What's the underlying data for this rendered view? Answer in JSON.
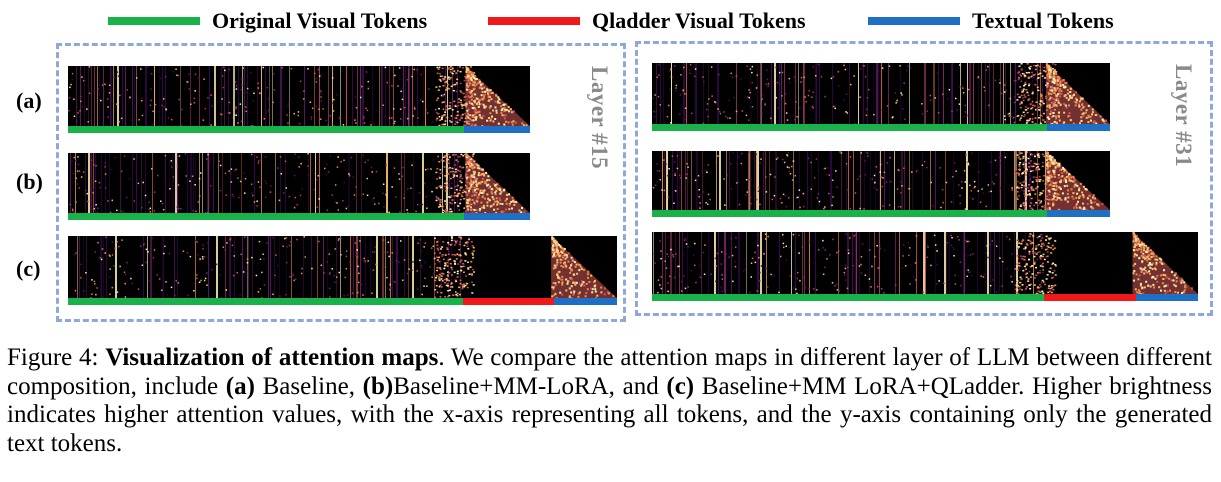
{
  "legend": {
    "original": {
      "label": "Original Visual Tokens",
      "color": "#19b24a"
    },
    "qladder": {
      "label": "Qladder Visual Tokens",
      "color": "#f01818"
    },
    "textual": {
      "label": "Textual Tokens",
      "color": "#1f6fc4"
    }
  },
  "panels": {
    "left": {
      "layer_label": "Layer #15",
      "rows": [
        {
          "label": "(a)",
          "has_qladder": false
        },
        {
          "label": "(b)",
          "has_qladder": false
        },
        {
          "label": "(c)",
          "has_qladder": true
        }
      ]
    },
    "right": {
      "layer_label": "Layer #31",
      "rows": [
        {
          "has_qladder": false
        },
        {
          "has_qladder": false
        },
        {
          "has_qladder": true
        }
      ]
    }
  },
  "caption": {
    "figure_num": "Figure 4:",
    "title": "Visualization of attention maps",
    "s1": ". We compare the attention maps in different layer of LLM between different composition, include ",
    "a_tag": "(a)",
    "a_text": " Baseline, ",
    "b_tag": "(b)",
    "b_text": "Baseline+MM-LoRA, and ",
    "c_tag": "(c)",
    "c_text": " Baseline+MM LoRA+QLadder. Higher brightness indicates higher attention values, with the x-axis representing all tokens, and the y-axis containing only the generated text tokens."
  }
}
